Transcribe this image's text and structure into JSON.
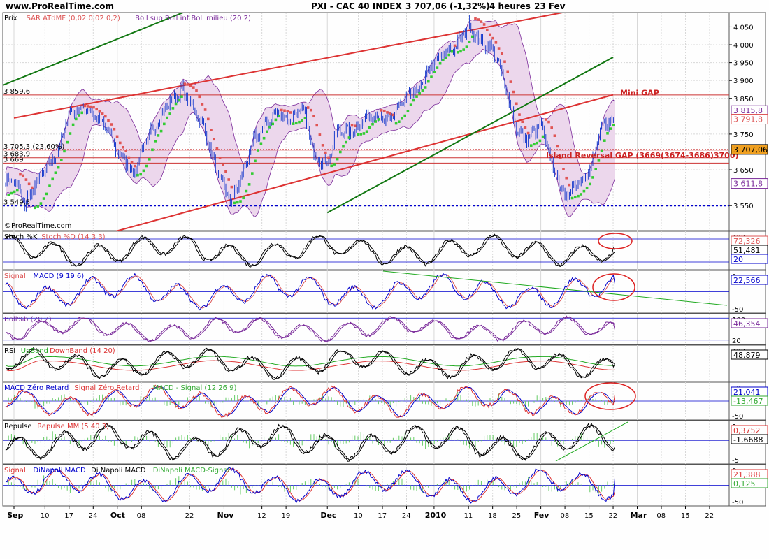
{
  "header": {
    "site": "www.ProRealTime.com",
    "title": "PXI - CAC 40 INDEX",
    "quote": "3 707,06 (-1,32%)",
    "period": "4 heures",
    "date": "23 Fev"
  },
  "watermark": "©ProRealTime.com",
  "colors": {
    "bg": "#fefefe",
    "grid": "#d8d8d8",
    "candle": "#1a3ccc",
    "bollinger": "#7a2a9a",
    "bollinger_fill": "#ecd7ec",
    "sar_above": "#e05555",
    "sar_below": "#33cc33",
    "trend_red": "#dd3333",
    "trend_green": "#117711",
    "support_blue": "#0000cc",
    "circle": "#dd2222"
  },
  "chart_data": [
    {
      "type": "candlestick",
      "panel": "price",
      "legend": [
        {
          "text": "Prix",
          "color": "#000000"
        },
        {
          "text": "SAR ATdMF (0,02 0,02 0,2)",
          "color": "#dd5555"
        },
        {
          "text": "Boll sup Boll inf Boll milieu (20 2)",
          "color": "#7a2a9a"
        }
      ],
      "y_ticks": [
        "4 050",
        "4 000",
        "3 950",
        "3 900",
        "3 850",
        "3 750",
        "3 650",
        "3 550"
      ],
      "y_tick_values": [
        4050,
        4000,
        3950,
        3900,
        3850,
        3750,
        3650,
        3550
      ],
      "ylim": [
        3480,
        4090
      ],
      "right_tags": [
        {
          "text": "3 815,8",
          "value": 3815.8,
          "color": "#7a2a9a"
        },
        {
          "text": "3 791,8",
          "value": 3791.8,
          "color": "#dd5555"
        },
        {
          "text": "3 707,06",
          "value": 3707.06,
          "color": "#000000"
        },
        {
          "text": "3 611,8",
          "value": 3611.8,
          "color": "#7a2a9a"
        }
      ],
      "left_levels": [
        {
          "text": "3 859,6",
          "value": 3859.6
        },
        {
          "text": "3 705,3 (23,60%)",
          "value": 3705.3
        },
        {
          "text": "3 683,9",
          "value": 3683.9
        },
        {
          "text": "3 669",
          "value": 3669.0
        },
        {
          "text": "3 549,5",
          "value": 3549.5
        }
      ],
      "annotations": [
        {
          "text": "Mini GAP",
          "color": "#cc2222"
        },
        {
          "text": "Island Reversal GAP (3669(3674-3686)3700)",
          "color": "#cc2222"
        }
      ],
      "support_level": 3549.5,
      "last_price": 3707.06,
      "trendlines": [
        {
          "name": "red-upper",
          "color": "#dd3333",
          "from": [
            "Sep 1",
            3795
          ],
          "to": [
            "Fev 10",
            4095
          ]
        },
        {
          "name": "red-lower",
          "color": "#dd3333",
          "from": [
            "Sep 1",
            3400
          ],
          "to": [
            "Fev 22",
            3860
          ]
        },
        {
          "name": "green-channel-upper",
          "color": "#117711",
          "from": [
            "Aug 26",
            3880
          ],
          "to": [
            "Fev 22",
            4575
          ]
        },
        {
          "name": "green-channel-lower",
          "color": "#117711",
          "from": [
            "Dec 1",
            3530
          ],
          "to": [
            "Fev 22",
            3965
          ]
        }
      ],
      "close_path": [
        [
          "Sep 1",
          3620
        ],
        [
          "Sep 4",
          3555
        ],
        [
          "Sep 8",
          3620
        ],
        [
          "Sep 14",
          3705
        ],
        [
          "Sep 17",
          3810
        ],
        [
          "Sep 22",
          3825
        ],
        [
          "Sep 28",
          3765
        ],
        [
          "Oct 1",
          3700
        ],
        [
          "Oct 6",
          3640
        ],
        [
          "Oct 8",
          3705
        ],
        [
          "Oct 15",
          3825
        ],
        [
          "Oct 20",
          3875
        ],
        [
          "Oct 26",
          3770
        ],
        [
          "Oct 30",
          3640
        ],
        [
          "Nov 3",
          3560
        ],
        [
          "Nov 6",
          3630
        ],
        [
          "Nov 10",
          3740
        ],
        [
          "Nov 16",
          3810
        ],
        [
          "Nov 20",
          3790
        ],
        [
          "Nov 24",
          3820
        ],
        [
          "Nov 27",
          3695
        ],
        [
          "Dec 1",
          3670
        ],
        [
          "Dec 4",
          3760
        ],
        [
          "Dec 8",
          3755
        ],
        [
          "Dec 14",
          3810
        ],
        [
          "Dec 18",
          3780
        ],
        [
          "Dec 22",
          3830
        ],
        [
          "Dec 28",
          3880
        ],
        [
          "Dec 31",
          3940
        ],
        [
          "Jan 4",
          3975
        ],
        [
          "Jan 8",
          4005
        ],
        [
          "Jan 11",
          4060
        ],
        [
          "Jan 14",
          4010
        ],
        [
          "Jan 18",
          3990
        ],
        [
          "Jan 21",
          3905
        ],
        [
          "Jan 25",
          3760
        ],
        [
          "Jan 28",
          3735
        ],
        [
          "Fev 1",
          3780
        ],
        [
          "Fev 4",
          3670
        ],
        [
          "Fev 8",
          3570
        ],
        [
          "Fev 11",
          3615
        ],
        [
          "Fev 15",
          3640
        ],
        [
          "Fev 18",
          3745
        ],
        [
          "Fev 19",
          3775
        ],
        [
          "Fev 22",
          3790
        ],
        [
          "Fev 23",
          3707
        ]
      ]
    },
    {
      "type": "line",
      "panel": "stochastic",
      "legend": [
        {
          "text": "Stoch %K",
          "color": "#000000"
        },
        {
          "text": "Stoch %D (14 3 3)",
          "color": "#dd5555"
        }
      ],
      "ylim": [
        0,
        100
      ],
      "levels": [
        80,
        20
      ],
      "right_tags": [
        {
          "text": "72,326",
          "color": "#dd5555"
        },
        {
          "text": "51,481",
          "color": "#000000"
        },
        {
          "text": "20",
          "color": "#0000cc"
        }
      ],
      "axis_tick": "100",
      "last": 51.481
    },
    {
      "type": "line",
      "panel": "macd",
      "legend": [
        {
          "text": "Signal",
          "color": "#dd5555"
        },
        {
          "text": "MACD (9 19 6)",
          "color": "#0000cc"
        }
      ],
      "ylim": [
        -60,
        60
      ],
      "levels": [
        0
      ],
      "right_tags": [
        {
          "text": "22,566",
          "color": "#0000cc"
        }
      ],
      "axis_ticks": [
        "0",
        "-50"
      ],
      "last": 22.566
    },
    {
      "type": "line",
      "panel": "bollinger-percent-b",
      "legend": [
        {
          "text": "Boll%b (20 2)",
          "color": "#7a2a9a"
        }
      ],
      "ylim": [
        -20,
        120
      ],
      "levels": [
        100,
        0
      ],
      "right_tags": [
        {
          "text": "46,354",
          "color": "#7a2a9a"
        }
      ],
      "axis_ticks": [
        "100",
        "20"
      ],
      "last": 46.354
    },
    {
      "type": "line",
      "panel": "rsi",
      "legend": [
        {
          "text": "RSI",
          "color": "#000000"
        },
        {
          "text": "UpBand",
          "color": "#22aa22"
        },
        {
          "text": "DownBand (14 20)",
          "color": "#dd3333"
        }
      ],
      "ylim": [
        0,
        100
      ],
      "right_tags": [
        {
          "text": "48,879",
          "color": "#000000"
        }
      ],
      "axis_tick": "100",
      "last": 48.879
    },
    {
      "type": "line",
      "panel": "macd-zero-lag",
      "legend": [
        {
          "text": "MACD Zéro Retard",
          "color": "#0000cc"
        },
        {
          "text": "Signal Zéro Retard",
          "color": "#dd3333"
        },
        {
          "text": "MACD - Signal (12 26 9)",
          "color": "#33aa33"
        }
      ],
      "ylim": [
        -60,
        60
      ],
      "levels": [
        0
      ],
      "right_tags": [
        {
          "text": "21,041",
          "color": "#0000cc"
        },
        {
          "text": "-13,467",
          "color": "#33aa33"
        }
      ],
      "axis_ticks": [
        "50",
        "0",
        "-50"
      ],
      "last": 21.041
    },
    {
      "type": "line",
      "panel": "repulse",
      "legend": [
        {
          "text": "Repulse",
          "color": "#000000"
        },
        {
          "text": "Repulse MM (5 40 3)",
          "color": "#dd3333"
        }
      ],
      "ylim": [
        -6,
        5
      ],
      "levels": [
        0
      ],
      "right_tags": [
        {
          "text": "0,3752",
          "color": "#dd3333"
        },
        {
          "text": "-1,6688",
          "color": "#000000"
        }
      ],
      "axis_ticks": [
        "5",
        "-5"
      ],
      "last": -1.6688
    },
    {
      "type": "line",
      "panel": "dinapoli-macd",
      "legend": [
        {
          "text": "Signal",
          "color": "#dd3333"
        },
        {
          "text": "DiNapoli MACD",
          "color": "#0000cc"
        },
        {
          "text": "Di Napoli MACD",
          "color": "#000000"
        },
        {
          "text": "DiNapoli MACD-Signal",
          "color": "#33aa33"
        }
      ],
      "ylim": [
        -60,
        60
      ],
      "levels": [
        0
      ],
      "right_tags": [
        {
          "text": "21,388",
          "color": "#dd3333"
        },
        {
          "text": "0,125",
          "color": "#33aa33"
        }
      ],
      "axis_ticks": [
        "0",
        "-50"
      ],
      "last": 21.388
    }
  ],
  "x_axis": {
    "ticks": [
      {
        "label": "Sep",
        "pos": "Sep 1",
        "bold": true
      },
      {
        "label": "10",
        "pos": "Sep 10"
      },
      {
        "label": "17",
        "pos": "Sep 17"
      },
      {
        "label": "24",
        "pos": "Sep 24"
      },
      {
        "label": "Oct",
        "pos": "Oct 1",
        "bold": true
      },
      {
        "label": "08",
        "pos": "Oct 8"
      },
      {
        "label": "22",
        "pos": "Oct 22"
      },
      {
        "label": "Nov",
        "pos": "Nov 1",
        "bold": true
      },
      {
        "label": "12",
        "pos": "Nov 12"
      },
      {
        "label": "19",
        "pos": "Nov 19"
      },
      {
        "label": "Dec",
        "pos": "Dec 1",
        "bold": true
      },
      {
        "label": "10",
        "pos": "Dec 10"
      },
      {
        "label": "17",
        "pos": "Dec 17"
      },
      {
        "label": "24",
        "pos": "Dec 24"
      },
      {
        "label": "2010",
        "pos": "Jan 1",
        "bold": true
      },
      {
        "label": "11",
        "pos": "Jan 11"
      },
      {
        "label": "18",
        "pos": "Jan 18"
      },
      {
        "label": "25",
        "pos": "Jan 25"
      },
      {
        "label": "Fev",
        "pos": "Fev 1",
        "bold": true
      },
      {
        "label": "08",
        "pos": "Fev 8"
      },
      {
        "label": "15",
        "pos": "Fev 15"
      },
      {
        "label": "22",
        "pos": "Fev 22"
      },
      {
        "label": "Mar",
        "pos": "Mar 1",
        "bold": true
      },
      {
        "label": "08",
        "pos": "Mar 8"
      },
      {
        "label": "15",
        "pos": "Mar 15"
      },
      {
        "label": "22",
        "pos": "Mar 22"
      }
    ]
  }
}
